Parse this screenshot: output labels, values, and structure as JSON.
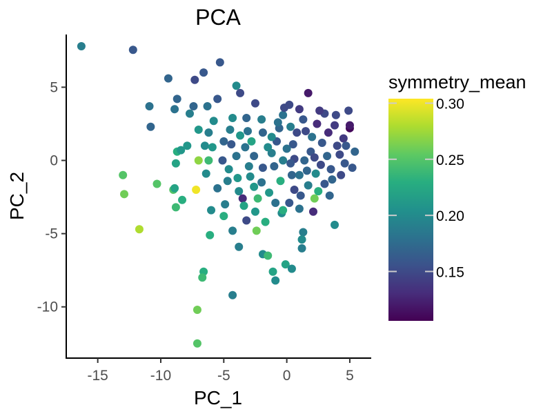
{
  "chart_data": {
    "type": "scatter",
    "title": "PCA",
    "xlabel": "PC_1",
    "ylabel": "PC_2",
    "xlim": [
      -17.5,
      6.7
    ],
    "ylim": [
      -13.5,
      8.6
    ],
    "xticks": [
      -15,
      -10,
      -5,
      0,
      5
    ],
    "xtick_labels": [
      "-15",
      "-10",
      "-5",
      "0",
      "5"
    ],
    "yticks": [
      -10,
      -5,
      0,
      5
    ],
    "ytick_labels": [
      "-10",
      "-5",
      "0",
      "5"
    ],
    "grid": false,
    "legend": {
      "title": "symmetry_mean",
      "placement": "right",
      "type": "colorbar",
      "range": [
        0.106,
        0.304
      ],
      "ticks": [
        0.15,
        0.2,
        0.25,
        0.3
      ],
      "tick_labels": [
        "0.15",
        "0.20",
        "0.25",
        "0.30"
      ],
      "colors": [
        "#440154",
        "#472d7b",
        "#3b528b",
        "#2c728e",
        "#21918c",
        "#28ae80",
        "#5ec962",
        "#addc30",
        "#fde725"
      ]
    },
    "points": [
      {
        "x": -16.3,
        "y": 7.8,
        "v": 0.19
      },
      {
        "x": -12.2,
        "y": 7.55,
        "v": 0.16
      },
      {
        "x": -9.4,
        "y": 5.6,
        "v": 0.17
      },
      {
        "x": -6.6,
        "y": 6.0,
        "v": 0.16
      },
      {
        "x": -7.3,
        "y": 5.5,
        "v": 0.15
      },
      {
        "x": -5.3,
        "y": 6.7,
        "v": 0.16
      },
      {
        "x": -10.9,
        "y": 3.7,
        "v": 0.18
      },
      {
        "x": -10.8,
        "y": 2.3,
        "v": 0.17
      },
      {
        "x": -8.9,
        "y": 3.5,
        "v": 0.18
      },
      {
        "x": -8.7,
        "y": 4.2,
        "v": 0.17
      },
      {
        "x": -7.7,
        "y": 3.2,
        "v": 0.19
      },
      {
        "x": -7.4,
        "y": 3.7,
        "v": 0.17
      },
      {
        "x": -6.3,
        "y": 3.7,
        "v": 0.18
      },
      {
        "x": -5.5,
        "y": 4.2,
        "v": 0.16
      },
      {
        "x": -4.0,
        "y": 5.1,
        "v": 0.2
      },
      {
        "x": -3.7,
        "y": 4.6,
        "v": 0.15
      },
      {
        "x": -6.5,
        "y": 1.0,
        "v": 0.2
      },
      {
        "x": -7.0,
        "y": 2.1,
        "v": 0.21
      },
      {
        "x": -7.9,
        "y": 1.0,
        "v": 0.21
      },
      {
        "x": -8.7,
        "y": 0.6,
        "v": 0.23
      },
      {
        "x": -8.8,
        "y": -0.2,
        "v": 0.22
      },
      {
        "x": -7.0,
        "y": 0.0,
        "v": 0.27
      },
      {
        "x": -8.4,
        "y": 0.7,
        "v": 0.21
      },
      {
        "x": -6.2,
        "y": 0.0,
        "v": 0.24
      },
      {
        "x": -9.0,
        "y": -2.0,
        "v": 0.25
      },
      {
        "x": -8.8,
        "y": -3.2,
        "v": 0.24
      },
      {
        "x": -8.3,
        "y": -2.7,
        "v": 0.23
      },
      {
        "x": -7.2,
        "y": -2.0,
        "v": 0.3
      },
      {
        "x": -8.9,
        "y": -1.9,
        "v": 0.22
      },
      {
        "x": -10.3,
        "y": -1.6,
        "v": 0.25
      },
      {
        "x": -13.0,
        "y": -1.0,
        "v": 0.25
      },
      {
        "x": -12.9,
        "y": -2.3,
        "v": 0.26
      },
      {
        "x": -11.7,
        "y": -4.7,
        "v": 0.28
      },
      {
        "x": -6.0,
        "y": -3.4,
        "v": 0.2
      },
      {
        "x": -5.0,
        "y": -3.8,
        "v": 0.23
      },
      {
        "x": -6.1,
        "y": -5.1,
        "v": 0.23
      },
      {
        "x": -4.3,
        "y": -4.8,
        "v": 0.19
      },
      {
        "x": -3.8,
        "y": -5.9,
        "v": 0.19
      },
      {
        "x": -2.4,
        "y": -4.8,
        "v": 0.26
      },
      {
        "x": -1.9,
        "y": -6.4,
        "v": 0.2
      },
      {
        "x": -1.5,
        "y": -6.5,
        "v": 0.24
      },
      {
        "x": -1.1,
        "y": -7.6,
        "v": 0.22
      },
      {
        "x": -0.9,
        "y": -8.2,
        "v": 0.2
      },
      {
        "x": -0.1,
        "y": -7.1,
        "v": 0.22
      },
      {
        "x": 0.4,
        "y": -7.4,
        "v": 0.2
      },
      {
        "x": -6.6,
        "y": -7.6,
        "v": 0.23
      },
      {
        "x": -6.7,
        "y": -8.0,
        "v": 0.24
      },
      {
        "x": -4.3,
        "y": -9.2,
        "v": 0.19
      },
      {
        "x": -7.1,
        "y": -10.2,
        "v": 0.26
      },
      {
        "x": -7.1,
        "y": -12.5,
        "v": 0.25
      },
      {
        "x": 1.2,
        "y": -6.0,
        "v": 0.19
      },
      {
        "x": 1.3,
        "y": -4.9,
        "v": 0.19
      },
      {
        "x": 1.2,
        "y": -5.4,
        "v": 0.2
      },
      {
        "x": 3.8,
        "y": -4.4,
        "v": 0.2
      },
      {
        "x": 1.7,
        "y": 4.6,
        "v": 0.12
      },
      {
        "x": 5.0,
        "y": 2.2,
        "v": 0.11
      },
      {
        "x": 5.0,
        "y": 2.4,
        "v": 0.12
      },
      {
        "x": 4.9,
        "y": 3.4,
        "v": 0.15
      },
      {
        "x": -2.6,
        "y": -1.8,
        "v": 0.21
      },
      {
        "x": -3.5,
        "y": -2.6,
        "v": 0.13
      },
      {
        "x": -0.4,
        "y": -3.6,
        "v": 0.2
      },
      {
        "x": -0.3,
        "y": -3.4,
        "v": 0.23
      },
      {
        "x": 2.1,
        "y": -3.5,
        "v": 0.13
      },
      {
        "x": 2.2,
        "y": -2.6,
        "v": 0.26
      },
      {
        "x": -3.2,
        "y": -4.1,
        "v": 0.15
      },
      {
        "x": 1.0,
        "y": -3.3,
        "v": 0.18
      },
      {
        "x": -1.2,
        "y": 0.5,
        "v": 0.19
      },
      {
        "x": -0.8,
        "y": 1.3,
        "v": 0.16
      },
      {
        "x": -1.9,
        "y": 1.9,
        "v": 0.17
      },
      {
        "x": -3.3,
        "y": 0.9,
        "v": 0.18
      },
      {
        "x": -3.1,
        "y": 2.0,
        "v": 0.18
      },
      {
        "x": -3.2,
        "y": 2.9,
        "v": 0.17
      },
      {
        "x": -2.5,
        "y": 3.9,
        "v": 0.15
      },
      {
        "x": -4.3,
        "y": 2.9,
        "v": 0.2
      },
      {
        "x": -4.5,
        "y": 2.1,
        "v": 0.19
      },
      {
        "x": -5.0,
        "y": 1.3,
        "v": 0.17
      },
      {
        "x": -5.1,
        "y": 0.0,
        "v": 0.16
      },
      {
        "x": -4.6,
        "y": -0.6,
        "v": 0.2
      },
      {
        "x": -4.7,
        "y": -1.4,
        "v": 0.19
      },
      {
        "x": -4.9,
        "y": -3.0,
        "v": 0.19
      },
      {
        "x": -3.8,
        "y": -2.1,
        "v": 0.2
      },
      {
        "x": -2.5,
        "y": -3.5,
        "v": 0.21
      },
      {
        "x": -2.0,
        "y": -1.5,
        "v": 0.18
      },
      {
        "x": -1.9,
        "y": -0.5,
        "v": 0.16
      },
      {
        "x": -1.0,
        "y": -0.4,
        "v": 0.17
      },
      {
        "x": -0.3,
        "y": 0.0,
        "v": 0.19
      },
      {
        "x": -0.6,
        "y": 2.2,
        "v": 0.17
      },
      {
        "x": -0.3,
        "y": 3.1,
        "v": 0.18
      },
      {
        "x": -0.2,
        "y": 3.6,
        "v": 0.15
      },
      {
        "x": 0.3,
        "y": 2.3,
        "v": 0.19
      },
      {
        "x": 0.5,
        "y": 1.1,
        "v": 0.16
      },
      {
        "x": 0.6,
        "y": 0.1,
        "v": 0.15
      },
      {
        "x": 0.4,
        "y": -1.0,
        "v": 0.17
      },
      {
        "x": 0.6,
        "y": -2.0,
        "v": 0.15
      },
      {
        "x": 0.2,
        "y": -2.9,
        "v": 0.16
      },
      {
        "x": 1.1,
        "y": -2.4,
        "v": 0.16
      },
      {
        "x": 1.0,
        "y": -1.0,
        "v": 0.18
      },
      {
        "x": 1.0,
        "y": 3.5,
        "v": 0.14
      },
      {
        "x": 1.5,
        "y": 2.0,
        "v": 0.15
      },
      {
        "x": 1.9,
        "y": 0.6,
        "v": 0.16
      },
      {
        "x": 2.3,
        "y": -0.9,
        "v": 0.2
      },
      {
        "x": 2.5,
        "y": -2.1,
        "v": 0.23
      },
      {
        "x": 3.0,
        "y": -1.6,
        "v": 0.16
      },
      {
        "x": 3.4,
        "y": -2.4,
        "v": 0.17
      },
      {
        "x": 4.3,
        "y": -1.0,
        "v": 0.15
      },
      {
        "x": 4.2,
        "y": 0.4,
        "v": 0.15
      },
      {
        "x": 4.5,
        "y": 1.5,
        "v": 0.14
      },
      {
        "x": 3.8,
        "y": 2.4,
        "v": 0.14
      },
      {
        "x": 3.0,
        "y": 3.2,
        "v": 0.15
      },
      {
        "x": 2.4,
        "y": 2.5,
        "v": 0.13
      },
      {
        "x": 2.8,
        "y": 1.2,
        "v": 0.16
      },
      {
        "x": 3.2,
        "y": 0.3,
        "v": 0.17
      },
      {
        "x": 3.5,
        "y": -0.6,
        "v": 0.16
      },
      {
        "x": 1.7,
        "y": -1.7,
        "v": 0.19
      },
      {
        "x": 5.2,
        "y": -0.5,
        "v": 0.16
      },
      {
        "x": 5.4,
        "y": 0.6,
        "v": 0.17
      },
      {
        "x": -2.0,
        "y": 2.8,
        "v": 0.19
      },
      {
        "x": -1.2,
        "y": 1.6,
        "v": 0.2
      },
      {
        "x": -2.8,
        "y": 1.3,
        "v": 0.22
      },
      {
        "x": -3.7,
        "y": 1.7,
        "v": 0.21
      },
      {
        "x": -4.0,
        "y": 0.3,
        "v": 0.18
      },
      {
        "x": -3.0,
        "y": -0.4,
        "v": 0.19
      },
      {
        "x": -2.3,
        "y": -2.6,
        "v": 0.24
      },
      {
        "x": -1.4,
        "y": -2.2,
        "v": 0.21
      },
      {
        "x": -0.5,
        "y": -1.4,
        "v": 0.23
      },
      {
        "x": 0.0,
        "y": 0.8,
        "v": 0.18
      },
      {
        "x": -5.8,
        "y": 2.7,
        "v": 0.2
      },
      {
        "x": -6.2,
        "y": 1.9,
        "v": 0.19
      },
      {
        "x": -5.9,
        "y": 0.9,
        "v": 0.21
      },
      {
        "x": -6.4,
        "y": -0.9,
        "v": 0.2
      },
      {
        "x": -5.5,
        "y": -1.9,
        "v": 0.18
      },
      {
        "x": -3.4,
        "y": -3.1,
        "v": 0.22
      },
      {
        "x": -1.7,
        "y": -4.2,
        "v": 0.23
      },
      {
        "x": -2.6,
        "y": 0.3,
        "v": 0.17
      },
      {
        "x": 1.3,
        "y": 2.8,
        "v": 0.16
      },
      {
        "x": 2.0,
        "y": 1.6,
        "v": 0.18
      },
      {
        "x": 0.2,
        "y": 3.8,
        "v": 0.15
      },
      {
        "x": -0.7,
        "y": 2.6,
        "v": 0.18
      },
      {
        "x": 4.0,
        "y": 1.0,
        "v": 0.15
      },
      {
        "x": 2.7,
        "y": -0.3,
        "v": 0.15
      },
      {
        "x": 3.6,
        "y": -1.3,
        "v": 0.17
      },
      {
        "x": 1.4,
        "y": 0.0,
        "v": 0.17
      },
      {
        "x": 0.8,
        "y": 1.9,
        "v": 0.15
      },
      {
        "x": 3.3,
        "y": 1.9,
        "v": 0.13
      },
      {
        "x": 4.6,
        "y": -0.2,
        "v": 0.16
      },
      {
        "x": -1.5,
        "y": 0.9,
        "v": 0.2
      },
      {
        "x": -4.4,
        "y": 1.1,
        "v": 0.16
      },
      {
        "x": -3.9,
        "y": -1.2,
        "v": 0.21
      },
      {
        "x": -2.9,
        "y": -1.1,
        "v": 0.2
      },
      {
        "x": -0.9,
        "y": -2.9,
        "v": 0.18
      },
      {
        "x": 0.3,
        "y": -0.2,
        "v": 0.16
      },
      {
        "x": 1.6,
        "y": -0.7,
        "v": 0.17
      },
      {
        "x": 2.2,
        "y": 0.2,
        "v": 0.15
      },
      {
        "x": 4.7,
        "y": 1.0,
        "v": 0.16
      },
      {
        "x": 3.9,
        "y": 3.1,
        "v": 0.15
      },
      {
        "x": 2.6,
        "y": 3.4,
        "v": 0.14
      }
    ]
  }
}
